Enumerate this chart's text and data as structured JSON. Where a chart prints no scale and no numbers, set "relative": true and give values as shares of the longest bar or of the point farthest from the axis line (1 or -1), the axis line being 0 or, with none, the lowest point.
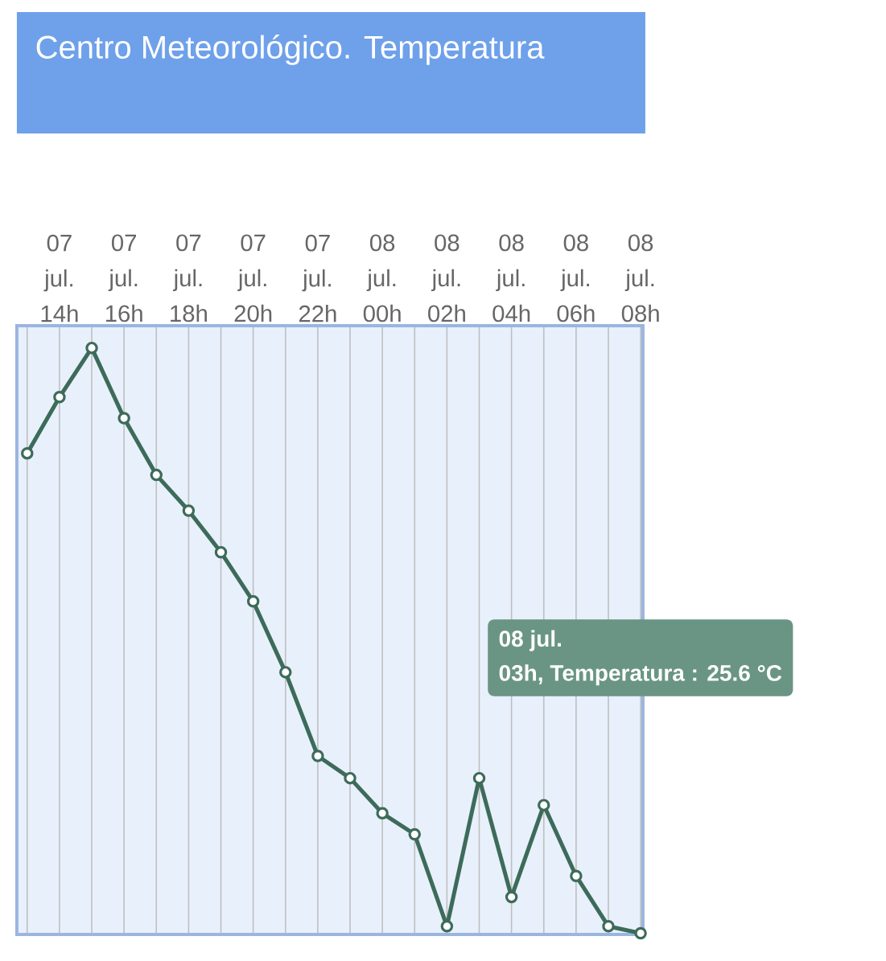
{
  "chart_data": {
    "type": "line",
    "title": "Centro Meteorológico. Temperatura",
    "categories": [
      null,
      "07 jul. 14h",
      null,
      "07 jul. 16h",
      null,
      "07 jul. 18h",
      null,
      "07 jul. 20h",
      null,
      "07 jul. 22h",
      null,
      "08 jul. 00h",
      null,
      "08 jul. 02h",
      null,
      "08 jul. 04h",
      null,
      "08 jul. 06h",
      null,
      "08 jul. 08h"
    ],
    "values": [
      0.82,
      0.916,
      1.0,
      0.88,
      0.783,
      0.722,
      0.651,
      0.567,
      0.446,
      0.303,
      0.265,
      0.205,
      0.169,
      0.012,
      0.265,
      0.062,
      0.219,
      0.098,
      0.012,
      0
    ],
    "color": "#3d6b5a",
    "relative": true,
    "grid": "x",
    "marker": "circle",
    "annotations": [
      "08 jul.",
      "03h, Temperatura : 25.6 °C"
    ]
  }
}
